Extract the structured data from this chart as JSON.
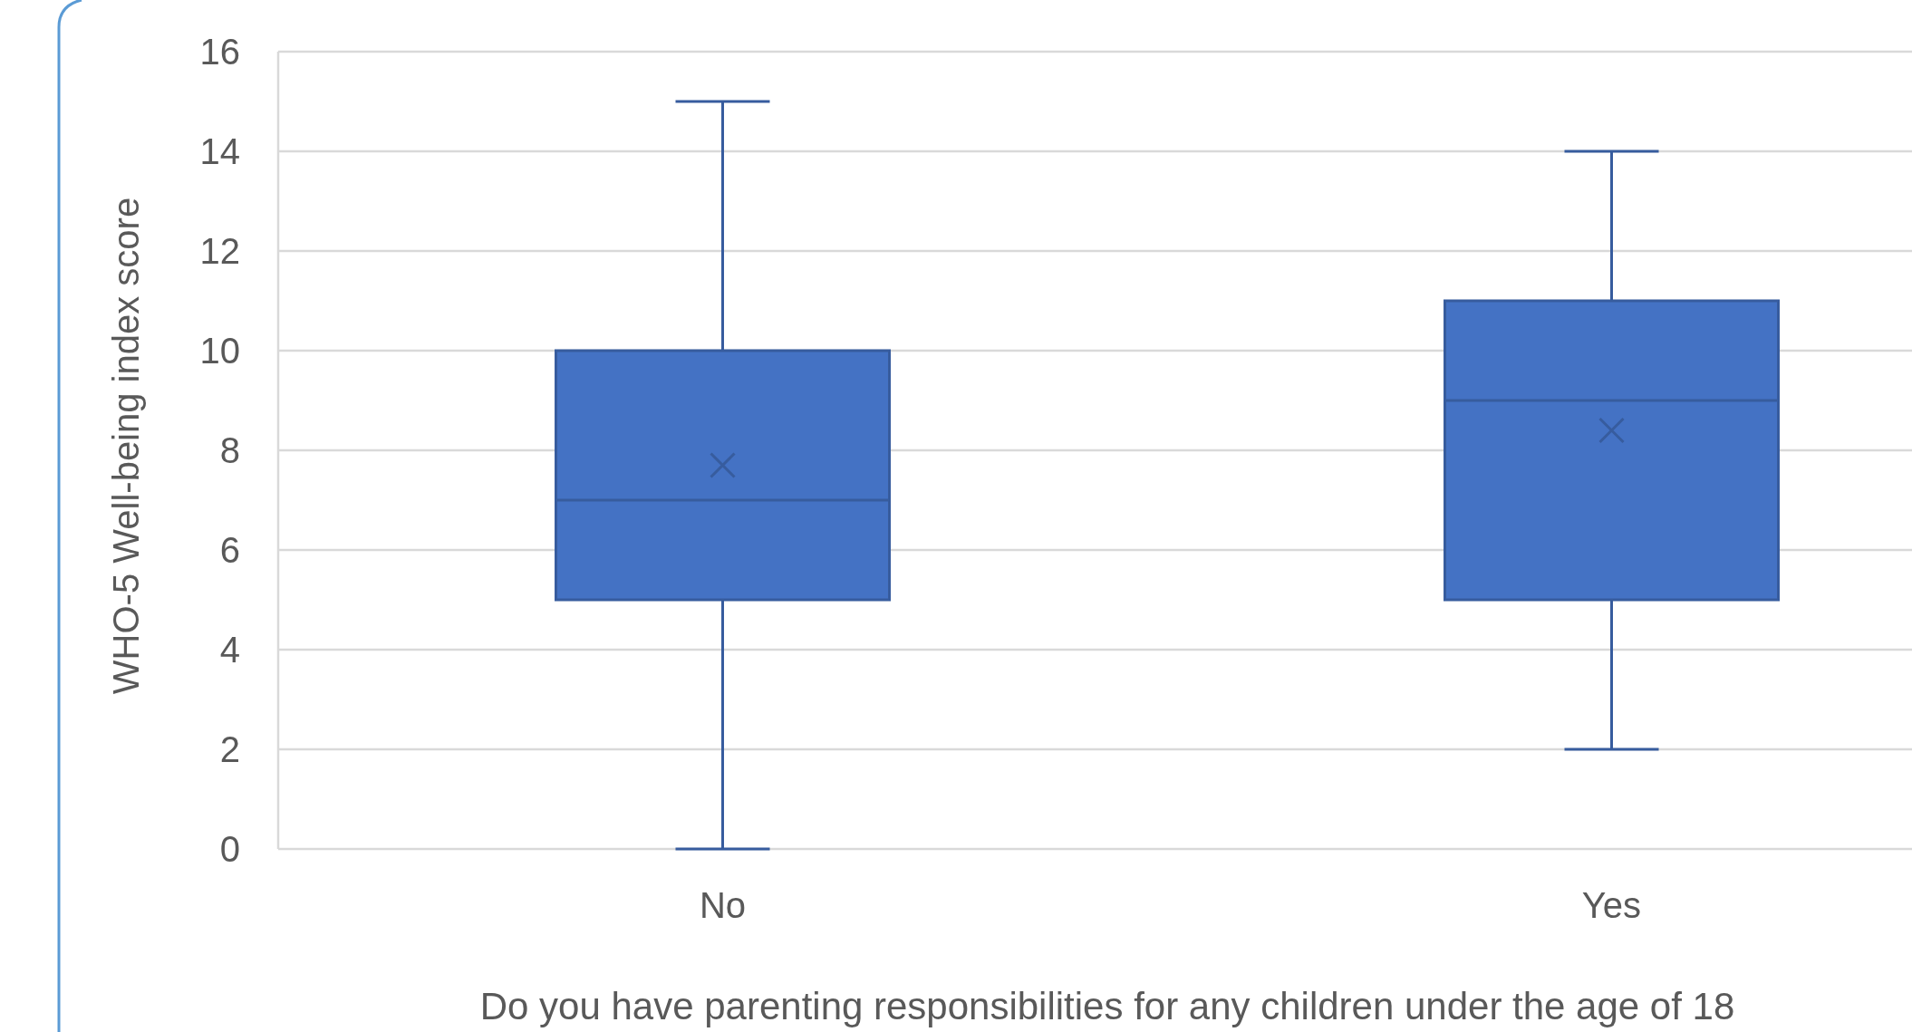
{
  "chart_data": {
    "type": "box",
    "xlabel": "Do you have parenting responsibilities for any children under the age of 18",
    "ylabel": "WHO-5  Well-being index score",
    "categories": [
      "No",
      "Yes"
    ],
    "color": "#4472c4",
    "boxes": [
      {
        "low": 0,
        "q1": 5,
        "median": 7,
        "q3": 10,
        "high": 15,
        "mean": 7.7
      },
      {
        "low": 2,
        "q1": 5,
        "median": 9,
        "q3": 11,
        "high": 14,
        "mean": 8.4
      }
    ],
    "ylim": [
      0,
      16
    ],
    "yticks": [
      0,
      2,
      4,
      6,
      8,
      10,
      12,
      14,
      16
    ],
    "grid": "y"
  }
}
